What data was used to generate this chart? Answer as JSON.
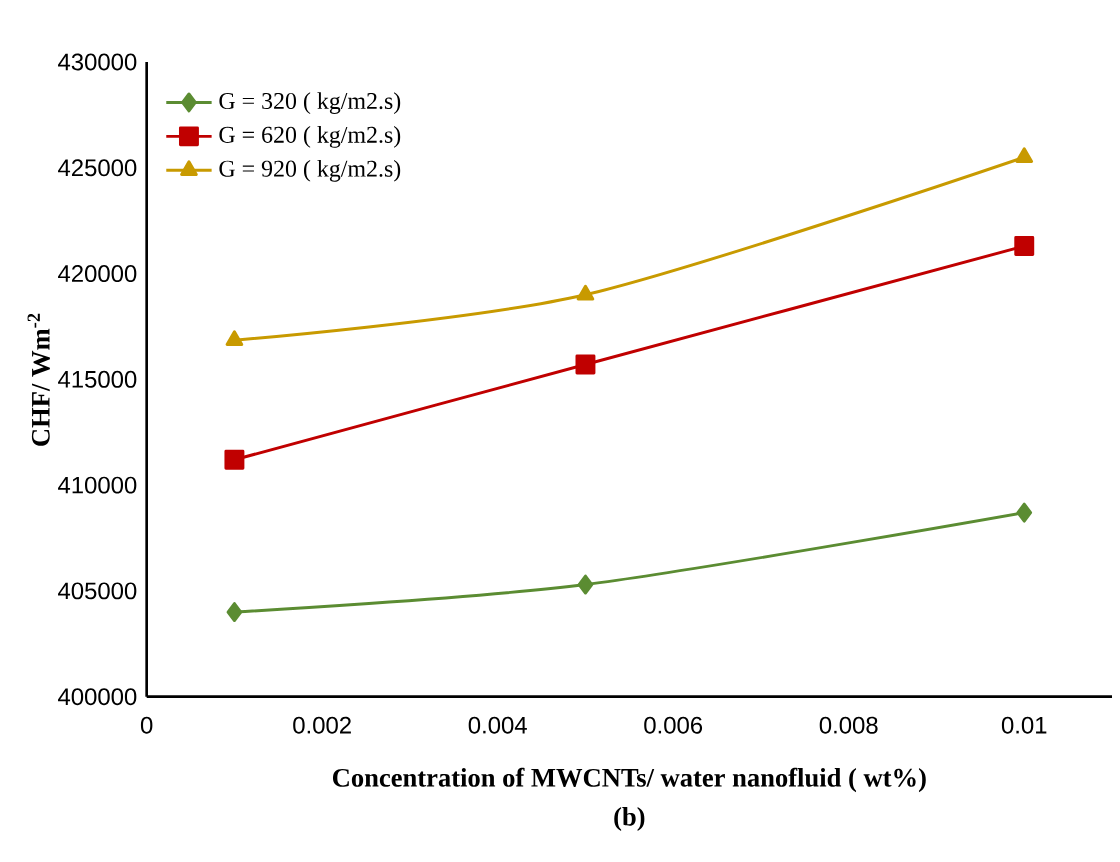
{
  "chart_data": {
    "type": "line",
    "xlabel": "Concentration of MWCNTs/ water nanofluid ( wt%)",
    "ylabel": "CHF/ Wm$^{-2}$",
    "annotations": [
      "(b)"
    ],
    "x": [
      0.001,
      0.005,
      0.01
    ],
    "series": [
      {
        "name": "G = 320 ( kg/m2.s)",
        "color": "#5b8c32",
        "marker": "diamond",
        "values": [
          404000,
          405300,
          408700
        ]
      },
      {
        "name": "G = 620 ( kg/m2.s)",
        "color": "#c00000",
        "marker": "square",
        "values": [
          411200,
          415700,
          421300
        ]
      },
      {
        "name": "G = 920 ( kg/m2.s)",
        "color": "#c89a00",
        "marker": "triangle",
        "values": [
          416850,
          419000,
          425500
        ]
      }
    ],
    "xlim": [
      0,
      0.011
    ],
    "xticks": [
      0,
      0.002,
      0.004,
      0.006,
      0.008,
      0.01
    ],
    "ylim": [
      400000,
      430000
    ],
    "yticks": [
      400000,
      405000,
      410000,
      415000,
      420000,
      425000,
      430000
    ],
    "grid": false,
    "legend": "top left",
    "line_style": "solid"
  }
}
